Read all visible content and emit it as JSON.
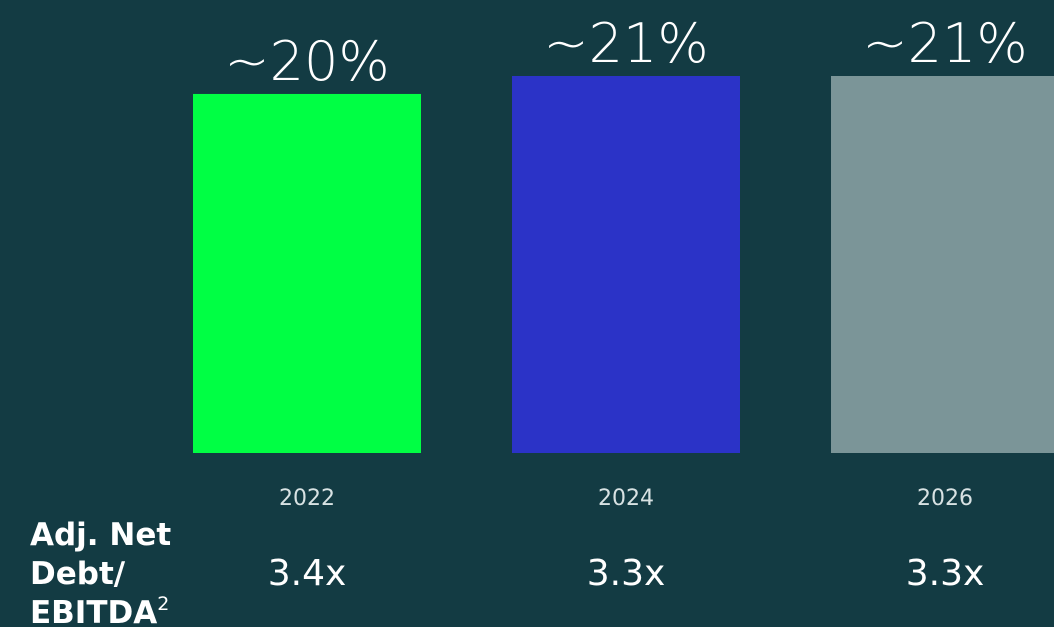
{
  "chart_data": {
    "type": "bar",
    "categories": [
      "2022",
      "2024",
      "2026"
    ],
    "values": [
      20,
      21,
      21
    ],
    "value_labels": [
      "~20%",
      "~21%",
      "~21%"
    ],
    "colors": [
      "#00ff44",
      "#2b33c7",
      "#7b9598"
    ],
    "secondary_row": {
      "label_lines": [
        "Adj. Net",
        "Debt/",
        "EBITDA"
      ],
      "label_superscript": "2",
      "values": [
        "3.4x",
        "3.3x",
        "3.3x"
      ]
    }
  }
}
